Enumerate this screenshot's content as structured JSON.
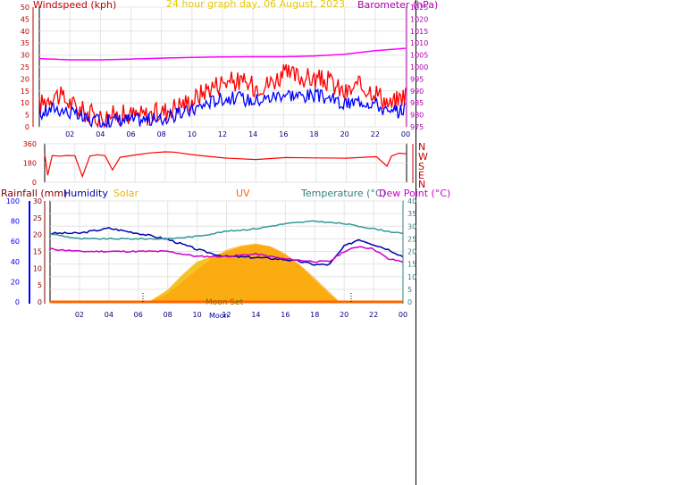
{
  "header": {
    "title": "24 hour graph day, 06 August, 2023",
    "left_label": "Windspeed (kph)",
    "right_label": "Barometer (hPa)"
  },
  "colors": {
    "wind_high": "#ff0000",
    "wind_avg": "#0000ff",
    "barometer": "#ff00ff",
    "direction": "#ff0000",
    "rain": "#800000",
    "humidity": "#0000aa",
    "solar": "#e6b800",
    "uv": "#ff6600",
    "temperature": "#339999",
    "dewpoint": "#cc00cc",
    "axis_blue": "#0000ff"
  },
  "bottom_header": {
    "rainfall": "Rainfall (mm)",
    "humidity": "Humidity",
    "solar": "Solar",
    "uv": "UV",
    "temperature": "Temperature (°C)",
    "dewpoint": "Dew Point (°C)"
  },
  "compass": {
    "N1": "N",
    "W": "W",
    "S": "S",
    "E": "E",
    "N2": "N"
  },
  "annotations": {
    "moon_set": "Moon Set",
    "moon_rise": "Moon",
    "noon": "12"
  },
  "chart_data": [
    {
      "type": "line",
      "title": "24 hour graph day, 06 August, 2023",
      "xlabel": "",
      "ylabel": "Windspeed (kph)",
      "ylim": [
        0,
        50
      ],
      "yticks": [
        "0",
        "5",
        "10",
        "15",
        "20",
        "25",
        "30",
        "35",
        "40",
        "45",
        "50"
      ],
      "y2label": "Barometer (hPa)",
      "y2lim": [
        975,
        1025
      ],
      "y2ticks": [
        "975",
        "980",
        "985",
        "990",
        "995",
        "1000",
        "1005",
        "1010",
        "1015",
        "1020",
        "1025"
      ],
      "xticks": [
        "02",
        "04",
        "06",
        "08",
        "10",
        "12",
        "14",
        "16",
        "18",
        "20",
        "22",
        "00"
      ],
      "grid": true,
      "series": [
        {
          "name": "Windspeed high",
          "axis": "left",
          "x": [
            0,
            1,
            2,
            3,
            4,
            5,
            6,
            7,
            8,
            9,
            10,
            11,
            12,
            13,
            14,
            15,
            16,
            17,
            18,
            19,
            20,
            21,
            22,
            23,
            24
          ],
          "values": [
            9,
            14,
            10,
            6,
            4,
            5,
            5,
            5,
            6,
            9,
            11,
            16,
            19,
            19,
            17,
            18,
            22,
            21,
            20,
            19,
            14,
            17,
            15,
            9,
            14
          ]
        },
        {
          "name": "Windspeed average",
          "axis": "left",
          "x": [
            0,
            1,
            2,
            3,
            4,
            5,
            6,
            7,
            8,
            9,
            10,
            11,
            12,
            13,
            14,
            15,
            16,
            17,
            18,
            19,
            20,
            21,
            22,
            23,
            24
          ],
          "values": [
            5,
            8,
            6,
            3,
            2,
            3,
            3,
            3,
            3,
            5,
            7,
            10,
            12,
            12,
            11,
            12,
            14,
            13,
            13,
            12,
            9,
            11,
            10,
            5,
            8
          ]
        },
        {
          "name": "Barometer",
          "axis": "right",
          "x": [
            0,
            2,
            4,
            6,
            8,
            10,
            12,
            14,
            16,
            18,
            20,
            22,
            24
          ],
          "values": [
            1003.5,
            1003.0,
            1003.0,
            1003.3,
            1003.7,
            1004.0,
            1004.2,
            1004.3,
            1004.3,
            1004.6,
            1005.3,
            1006.8,
            1007.8
          ]
        }
      ]
    },
    {
      "type": "line",
      "title": "",
      "ylabel": "Wind direction",
      "ylim": [
        0,
        360
      ],
      "yticks": [
        "0",
        "180",
        "360"
      ],
      "series": [
        {
          "name": "Wind direction",
          "x": [
            0,
            0.2,
            0.5,
            1,
            1.5,
            2,
            2.5,
            3,
            3.5,
            4,
            4.5,
            5,
            6,
            7,
            8,
            8.6,
            9,
            10,
            12,
            14,
            16,
            18,
            20,
            22,
            22.7,
            23,
            23.5,
            24
          ],
          "values": [
            270,
            60,
            250,
            240,
            250,
            250,
            60,
            250,
            250,
            250,
            120,
            230,
            255,
            270,
            290,
            280,
            270,
            255,
            230,
            215,
            235,
            225,
            220,
            235,
            150,
            240,
            270,
            260
          ]
        }
      ]
    },
    {
      "type": "area",
      "title": "",
      "xticks": [
        "02",
        "04",
        "06",
        "08",
        "10",
        "12",
        "14",
        "16",
        "18",
        "20",
        "22",
        "00"
      ],
      "rain_axis": {
        "ylim": [
          0,
          30
        ],
        "yticks": [
          "0",
          "5",
          "10",
          "15",
          "20",
          "25",
          "30"
        ]
      },
      "humidity_axis": {
        "ylim": [
          0,
          100
        ],
        "yticks": [
          "0",
          "20",
          "40",
          "60",
          "80",
          "100"
        ]
      },
      "temperature_axis": {
        "ylim": [
          0,
          40
        ],
        "yticks": [
          "0",
          "5",
          "10",
          "15",
          "20",
          "25",
          "30",
          "35",
          "40"
        ]
      },
      "series": [
        {
          "name": "Humidity",
          "axis": "humidity",
          "x": [
            0,
            2,
            4,
            6,
            8,
            10,
            11,
            12,
            14,
            16,
            17,
            18,
            19,
            20,
            21,
            22,
            23,
            24
          ],
          "values": [
            68,
            68,
            73,
            68,
            62,
            52,
            48,
            45,
            44,
            42,
            40,
            37,
            37,
            55,
            62,
            57,
            52,
            45
          ]
        },
        {
          "name": "Temperature",
          "axis": "temperature",
          "x": [
            0,
            2,
            4,
            6,
            8,
            10,
            12,
            14,
            16,
            18,
            20,
            22,
            24
          ],
          "values": [
            27,
            25,
            25,
            25,
            25,
            26,
            28,
            29,
            31,
            32,
            31,
            29,
            27
          ]
        },
        {
          "name": "Dew Point",
          "axis": "temperature",
          "x": [
            0,
            2,
            4,
            6,
            8,
            10,
            12,
            14,
            16,
            18,
            19,
            20,
            21,
            22,
            23,
            24
          ],
          "values": [
            21,
            20,
            20,
            20,
            20,
            18,
            18,
            19,
            17,
            16,
            16,
            20,
            22,
            21,
            17,
            16
          ]
        },
        {
          "name": "Solar",
          "axis": "humidity",
          "x": [
            6.7,
            8,
            9,
            10,
            11,
            12,
            13,
            14,
            15,
            16,
            17,
            18,
            19,
            19.7
          ],
          "values": [
            0,
            12,
            27,
            40,
            45,
            50,
            55,
            57,
            55,
            47,
            36,
            22,
            8,
            0
          ]
        },
        {
          "name": "UV",
          "axis": "humidity",
          "x": [
            6.7,
            8,
            9,
            10,
            11,
            12,
            13,
            14,
            15,
            16,
            17,
            18,
            19,
            19.7
          ],
          "values": [
            0,
            8,
            20,
            32,
            43,
            52,
            56,
            58,
            55,
            48,
            37,
            24,
            10,
            0
          ]
        },
        {
          "name": "Rainfall",
          "axis": "rain",
          "x": [
            0,
            24
          ],
          "values": [
            0,
            0
          ]
        }
      ],
      "markers": {
        "sunrise": 6.7,
        "sunset": 20.6
      }
    }
  ]
}
